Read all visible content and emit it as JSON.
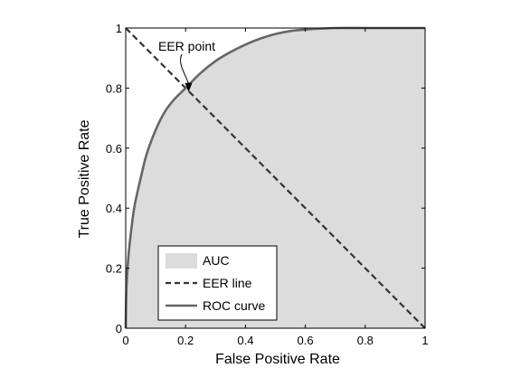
{
  "chart_data": {
    "type": "area",
    "title": "",
    "xlabel": "False Positive Rate",
    "ylabel": "True Positive Rate",
    "xlim": [
      0,
      1
    ],
    "ylim": [
      0,
      1
    ],
    "grid": false,
    "x_ticks": [
      "0",
      "0.2",
      "0.4",
      "0.6",
      "0.8",
      "1"
    ],
    "y_ticks": [
      "0",
      "0.2",
      "0.4",
      "0.6",
      "0.8",
      "1"
    ],
    "legend_position": "bottom-left",
    "series": [
      {
        "name": "ROC curve",
        "style": "solid",
        "color": "#666666",
        "x": [
          0,
          0.002,
          0.005,
          0.01,
          0.02,
          0.03,
          0.05,
          0.07,
          0.1,
          0.13,
          0.16,
          0.2,
          0.25,
          0.3,
          0.35,
          0.4,
          0.45,
          0.5,
          0.55,
          0.6,
          0.7,
          0.8,
          0.9,
          1.0
        ],
        "y": [
          0,
          0.12,
          0.18,
          0.25,
          0.34,
          0.41,
          0.5,
          0.58,
          0.66,
          0.72,
          0.76,
          0.8,
          0.85,
          0.89,
          0.92,
          0.945,
          0.965,
          0.98,
          0.99,
          0.995,
          1.0,
          1.0,
          1.0,
          1.0
        ]
      },
      {
        "name": "EER line",
        "style": "dashed",
        "color": "#333333",
        "x": [
          0,
          1
        ],
        "y": [
          1,
          0
        ]
      },
      {
        "name": "AUC",
        "style": "area",
        "color": "#dcdcdc"
      }
    ],
    "annotations": [
      {
        "text": "EER point",
        "x": 0.21,
        "y": 0.79
      }
    ]
  }
}
